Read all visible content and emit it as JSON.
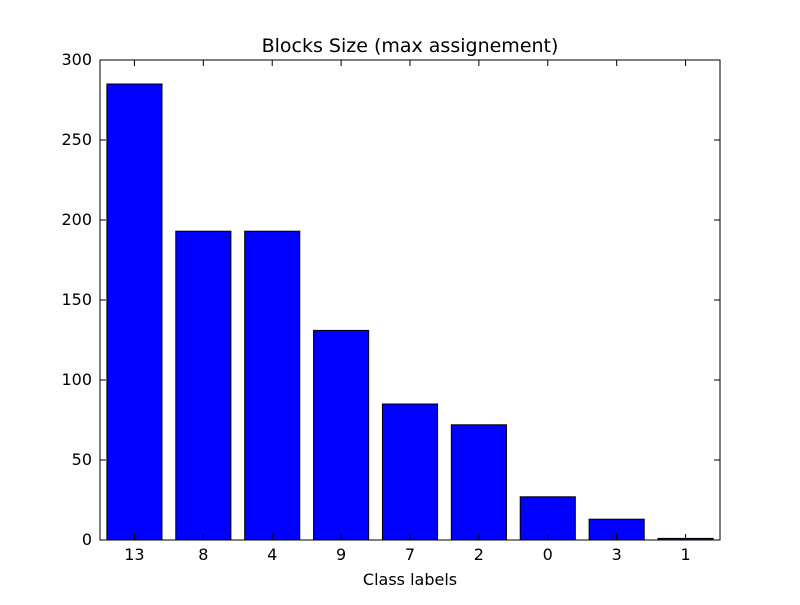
{
  "chart_data": {
    "type": "bar",
    "title": "Blocks Size (max assignement)",
    "xlabel": "Class labels",
    "ylabel": "",
    "categories": [
      "13",
      "8",
      "4",
      "9",
      "7",
      "2",
      "0",
      "3",
      "1"
    ],
    "values": [
      285,
      193,
      193,
      131,
      85,
      72,
      27,
      13,
      1
    ],
    "ylim": [
      0,
      300
    ],
    "yticks": [
      "0",
      "50",
      "100",
      "150",
      "200",
      "250",
      "300"
    ],
    "grid": false,
    "legend": "none",
    "bar_color": "#0000ff",
    "edge_color": "#000000"
  }
}
